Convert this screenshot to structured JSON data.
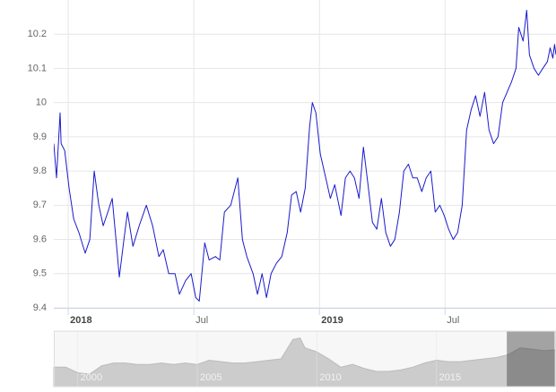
{
  "chart_data": {
    "type": "line",
    "color": "#1a1acc",
    "ylim": [
      9.4,
      10.3
    ],
    "yticks": [
      9.4,
      9.5,
      9.6,
      9.7,
      9.8,
      9.9,
      10.0,
      10.1,
      10.2
    ],
    "xlim": [
      -0.69,
      23.3
    ],
    "xticks": [
      {
        "value": 0,
        "label": "2018"
      },
      {
        "value": 6,
        "label": "Jul"
      },
      {
        "value": 12,
        "label": "2019"
      },
      {
        "value": 18,
        "label": "Jul"
      }
    ],
    "grid": true,
    "x": [
      -0.69,
      -0.56,
      -0.39,
      -0.34,
      -0.17,
      0.04,
      0.26,
      0.51,
      0.81,
      1.03,
      1.24,
      1.46,
      1.67,
      1.89,
      2.1,
      2.31,
      2.44,
      2.66,
      2.83,
      3.09,
      3.39,
      3.73,
      4.03,
      4.33,
      4.54,
      4.8,
      5.1,
      5.31,
      5.61,
      5.87,
      6.09,
      6.26,
      6.52,
      6.73,
      7.03,
      7.24,
      7.46,
      7.76,
      8.1,
      8.32,
      8.53,
      8.83,
      9.04,
      9.26,
      9.47,
      9.69,
      9.94,
      10.2,
      10.46,
      10.67,
      10.89,
      11.1,
      11.32,
      11.53,
      11.66,
      11.83,
      12.04,
      12.3,
      12.52,
      12.73,
      13.03,
      13.24,
      13.46,
      13.67,
      13.89,
      14.1,
      14.32,
      14.53,
      14.74,
      14.96,
      15.17,
      15.39,
      15.6,
      15.82,
      16.03,
      16.25,
      16.46,
      16.67,
      16.89,
      17.1,
      17.32,
      17.53,
      17.75,
      17.96,
      18.17,
      18.39,
      18.6,
      18.82,
      19.03,
      19.25,
      19.46,
      19.67,
      19.89,
      20.1,
      20.32,
      20.53,
      20.75,
      20.96,
      21.17,
      21.39,
      21.52,
      21.73,
      21.9,
      22.03,
      22.25,
      22.46,
      22.67,
      22.89,
      23.02,
      23.15,
      23.23,
      23.3
    ],
    "values": [
      9.88,
      9.78,
      9.97,
      9.88,
      9.86,
      9.75,
      9.66,
      9.62,
      9.56,
      9.6,
      9.8,
      9.7,
      9.64,
      9.68,
      9.72,
      9.58,
      9.49,
      9.6,
      9.68,
      9.58,
      9.64,
      9.7,
      9.64,
      9.55,
      9.57,
      9.5,
      9.5,
      9.44,
      9.48,
      9.5,
      9.43,
      9.42,
      9.59,
      9.54,
      9.55,
      9.54,
      9.68,
      9.7,
      9.78,
      9.6,
      9.55,
      9.5,
      9.44,
      9.5,
      9.43,
      9.5,
      9.53,
      9.55,
      9.62,
      9.73,
      9.74,
      9.68,
      9.75,
      9.93,
      10.0,
      9.97,
      9.85,
      9.78,
      9.72,
      9.76,
      9.67,
      9.78,
      9.8,
      9.78,
      9.72,
      9.87,
      9.76,
      9.65,
      9.63,
      9.72,
      9.62,
      9.58,
      9.6,
      9.68,
      9.8,
      9.82,
      9.78,
      9.78,
      9.74,
      9.78,
      9.8,
      9.68,
      9.7,
      9.67,
      9.63,
      9.6,
      9.62,
      9.7,
      9.92,
      9.98,
      10.02,
      9.96,
      10.03,
      9.92,
      9.88,
      9.9,
      10.0,
      10.03,
      10.06,
      10.1,
      10.22,
      10.18,
      10.27,
      10.14,
      10.1,
      10.08,
      10.1,
      10.12,
      10.16,
      10.13,
      10.17,
      10.14
    ],
    "navigator": {
      "color": "#cccccc",
      "xlim": [
        1999,
        2020
      ],
      "ylim": [
        7.5,
        11.5
      ],
      "xticks": [
        {
          "value": 2000,
          "label": "2000"
        },
        {
          "value": 2005,
          "label": "2005"
        },
        {
          "value": 2010,
          "label": "2010"
        },
        {
          "value": 2015,
          "label": "2015"
        }
      ],
      "x": [
        1999,
        1999.5,
        2000,
        2000.5,
        2001,
        2001.5,
        2002,
        2002.5,
        2003,
        2003.5,
        2004,
        2004.5,
        2005,
        2005.5,
        2006,
        2006.5,
        2007,
        2007.5,
        2008,
        2008.5,
        2009,
        2009.3,
        2009.5,
        2010,
        2010.5,
        2011,
        2011.5,
        2012,
        2012.5,
        2013,
        2013.5,
        2014,
        2014.5,
        2015,
        2015.5,
        2016,
        2016.5,
        2017,
        2017.5,
        2018,
        2018.5,
        2019,
        2019.5,
        2020
      ],
      "values": [
        8.9,
        8.9,
        8.5,
        8.4,
        9.0,
        9.2,
        9.2,
        9.1,
        9.1,
        9.2,
        9.1,
        9.2,
        9.1,
        9.4,
        9.3,
        9.2,
        9.2,
        9.3,
        9.4,
        9.5,
        10.9,
        11.0,
        10.3,
        10.0,
        9.5,
        8.9,
        9.1,
        8.8,
        8.6,
        8.6,
        8.7,
        8.9,
        9.2,
        9.4,
        9.3,
        9.3,
        9.4,
        9.5,
        9.6,
        9.8,
        10.3,
        10.2,
        10.1,
        10.15
      ]
    }
  }
}
